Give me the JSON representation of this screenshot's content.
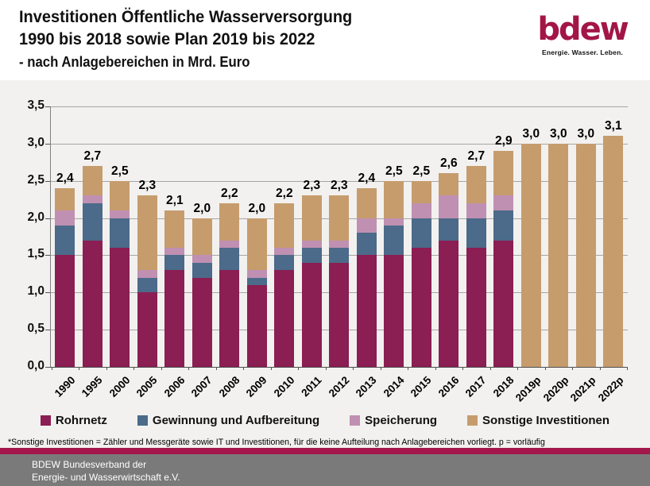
{
  "header": {
    "title_line1": "Investitionen Öffentliche Wasserversorgung",
    "title_line2": "1990 bis 2018 sowie Plan 2019 bis 2022",
    "title_line3": "- nach Anlagebereichen in Mrd. Euro",
    "logo_text": "bdew",
    "logo_tagline": "Energie. Wasser. Leben."
  },
  "chart_data": {
    "type": "bar",
    "stacked": true,
    "title": "Investitionen Öffentliche Wasserversorgung 1990 bis 2018 sowie Plan 2019 bis 2022 - nach Anlagebereichen in Mrd. Euro",
    "unit": "Mrd. Euro",
    "categories": [
      "1990",
      "1995",
      "2000",
      "2005",
      "2006",
      "2007",
      "2008",
      "2009",
      "2010",
      "2011",
      "2012",
      "2013",
      "2014",
      "2015",
      "2016",
      "2017",
      "2018",
      "2019p",
      "2020p",
      "2021p",
      "2022p"
    ],
    "series": [
      {
        "name": "Rohrnetz",
        "color": "#8B1E52",
        "values": [
          1.5,
          1.7,
          1.6,
          1.0,
          1.3,
          1.2,
          1.3,
          1.1,
          1.3,
          1.4,
          1.4,
          1.5,
          1.5,
          1.6,
          1.7,
          1.6,
          1.7,
          0,
          0,
          0,
          0
        ]
      },
      {
        "name": "Gewinnung und Aufbereitung",
        "color": "#4C6A89",
        "values": [
          0.4,
          0.5,
          0.4,
          0.2,
          0.2,
          0.2,
          0.3,
          0.1,
          0.2,
          0.2,
          0.2,
          0.3,
          0.4,
          0.4,
          0.3,
          0.4,
          0.4,
          0,
          0,
          0,
          0
        ]
      },
      {
        "name": "Speicherung",
        "color": "#BF90B2",
        "values": [
          0.2,
          0.1,
          0.1,
          0.1,
          0.1,
          0.1,
          0.1,
          0.1,
          0.1,
          0.1,
          0.1,
          0.2,
          0.1,
          0.2,
          0.3,
          0.2,
          0.2,
          0,
          0,
          0,
          0
        ]
      },
      {
        "name": "Sonstige Investitionen",
        "color": "#C69C6D",
        "values": [
          0.3,
          0.4,
          0.4,
          1.0,
          0.5,
          0.5,
          0.5,
          0.7,
          0.6,
          0.6,
          0.6,
          0.4,
          0.5,
          0.3,
          0.3,
          0.5,
          0.6,
          3.0,
          3.0,
          3.0,
          3.1
        ]
      }
    ],
    "totals_labels": [
      "2,4",
      "2,7",
      "2,5",
      "2,3",
      "2,1",
      "2,0",
      "2,2",
      "2,0",
      "2,2",
      "2,3",
      "2,3",
      "2,4",
      "2,5",
      "2,5",
      "2,6",
      "2,7",
      "2,9",
      "3,0",
      "3,0",
      "3,0",
      "3,1"
    ],
    "ylim": [
      0,
      3.5
    ],
    "ytick_values": [
      0,
      0.5,
      1.0,
      1.5,
      2.0,
      2.5,
      3.0,
      3.5
    ],
    "ytick_labels": [
      "0,0",
      "0,5",
      "1,0",
      "1,5",
      "2,0",
      "2,5",
      "3,0",
      "3,5"
    ],
    "grid": true,
    "legend_position": "bottom"
  },
  "footnote": "*Sonstige Investitionen = Zähler und Messgeräte sowie IT und Investitionen, für die keine Aufteilung nach Anlagebereichen vorliegt. p = vorläufig",
  "footer": {
    "line1": "BDEW Bundesverband der",
    "line2": "Energie- und Wasserwirtschaft e.V."
  },
  "colors": {
    "logo_red": "#A31547",
    "stripe": "#A3174D",
    "footer_bg": "#7A7A7A",
    "chart_bg": "#F2F1EF"
  }
}
